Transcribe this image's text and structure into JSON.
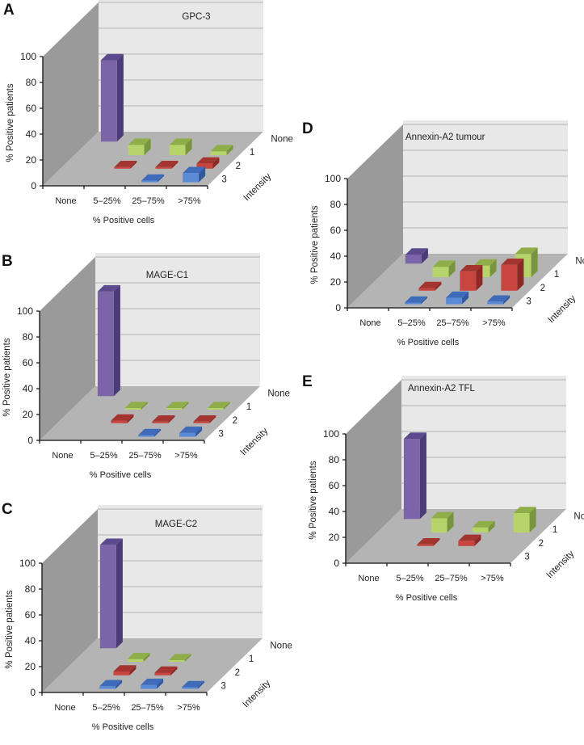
{
  "colors": {
    "None": "#7b65a8",
    "1": "#b6d46a",
    "2": "#c8463f",
    "3": "#5b8ad6",
    "floor": "#b4b4b4",
    "side_wall": "#9a9a9a",
    "back_wall": "#e8e8e8"
  },
  "chart_data": [
    {
      "panel": "A",
      "type": "bar",
      "title": "GPC-3",
      "categories": [
        "None",
        "5–25%",
        "25–75%",
        ">75%"
      ],
      "series": [
        {
          "name": "None",
          "values": [
            63,
            0,
            0,
            0
          ]
        },
        {
          "name": "1",
          "values": [
            0,
            8,
            8,
            3
          ]
        },
        {
          "name": "2",
          "values": [
            0,
            1,
            1,
            4
          ]
        },
        {
          "name": "3",
          "values": [
            0,
            0,
            1,
            7
          ]
        }
      ],
      "xlabel": "% Positive cells",
      "ylabel": "% Positive patients",
      "zlabel": "Intensity",
      "yticks": [
        "0",
        "20",
        "40",
        "60",
        "80",
        "100"
      ],
      "ylim": [
        0,
        100
      ],
      "grid": true
    },
    {
      "panel": "B",
      "type": "bar",
      "title": "MAGE-C1",
      "categories": [
        "None",
        "5–25%",
        "25–75%",
        ">75%"
      ],
      "series": [
        {
          "name": "None",
          "values": [
            81,
            0,
            0,
            0
          ]
        },
        {
          "name": "1",
          "values": [
            0,
            1,
            1,
            1
          ]
        },
        {
          "name": "2",
          "values": [
            0,
            2,
            1,
            1
          ]
        },
        {
          "name": "3",
          "values": [
            0,
            0,
            1,
            3
          ]
        }
      ],
      "xlabel": "% Positive cells",
      "ylabel": "% Positive patients",
      "zlabel": "Intensity",
      "yticks": [
        "0",
        "20",
        "40",
        "60",
        "80",
        "100"
      ],
      "ylim": [
        0,
        100
      ],
      "grid": true
    },
    {
      "panel": "C",
      "type": "bar",
      "title": "MAGE-C2",
      "categories": [
        "None",
        "5–25%",
        "25–75%",
        ">75%"
      ],
      "series": [
        {
          "name": "None",
          "values": [
            80,
            0,
            0,
            0
          ]
        },
        {
          "name": "1",
          "values": [
            0,
            2,
            1,
            0
          ]
        },
        {
          "name": "2",
          "values": [
            0,
            3,
            2,
            0
          ]
        },
        {
          "name": "3",
          "values": [
            0,
            2,
            3,
            1
          ]
        }
      ],
      "xlabel": "% Positive cells",
      "ylabel": "% Positive patients",
      "zlabel": "Intensity",
      "yticks": [
        "0",
        "20",
        "40",
        "60",
        "80",
        "100"
      ],
      "ylim": [
        0,
        100
      ],
      "grid": true
    },
    {
      "panel": "D",
      "type": "bar",
      "title": "Annexin-A2 tumour",
      "categories": [
        "None",
        "5–25%",
        "25–75%",
        ">75%"
      ],
      "series": [
        {
          "name": "None",
          "values": [
            7,
            0,
            0,
            0
          ]
        },
        {
          "name": "1",
          "values": [
            0,
            8,
            9,
            18
          ]
        },
        {
          "name": "2",
          "values": [
            0,
            2,
            15,
            20
          ]
        },
        {
          "name": "3",
          "values": [
            0,
            1,
            5,
            2
          ]
        }
      ],
      "xlabel": "% Positive cells",
      "ylabel": "% Positive patients",
      "zlabel": "Intensity",
      "yticks": [
        "0",
        "20",
        "40",
        "60",
        "80",
        "100"
      ],
      "ylim": [
        0,
        100
      ],
      "grid": true
    },
    {
      "panel": "E",
      "type": "bar",
      "title": "Annexin-A2 TFL",
      "categories": [
        "None",
        "5–25%",
        "25–75%",
        ">75%"
      ],
      "series": [
        {
          "name": "None",
          "values": [
            62,
            0,
            0,
            0
          ]
        },
        {
          "name": "1",
          "values": [
            0,
            11,
            4,
            15
          ]
        },
        {
          "name": "2",
          "values": [
            0,
            1,
            4,
            0
          ]
        },
        {
          "name": "3",
          "values": [
            0,
            0,
            0,
            0
          ]
        }
      ],
      "xlabel": "% Positive cells",
      "ylabel": "% Positive patients",
      "zlabel": "Intensity",
      "yticks": [
        "0",
        "20",
        "40",
        "60",
        "80",
        "100"
      ],
      "ylim": [
        0,
        100
      ],
      "grid": true
    }
  ]
}
